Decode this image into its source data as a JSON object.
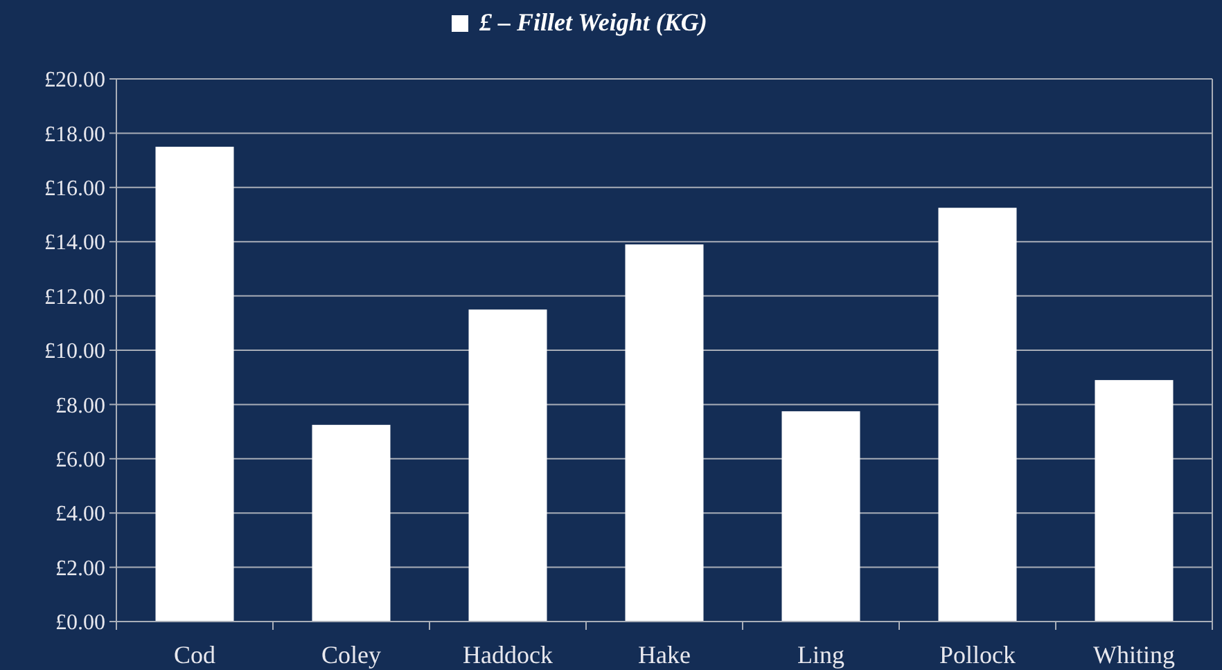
{
  "chart_data": {
    "type": "bar",
    "categories": [
      "Cod",
      "Coley",
      "Haddock",
      "Hake",
      "Ling",
      "Pollock",
      "Whiting"
    ],
    "series": [
      {
        "name": "£ – Fillet Weight (KG)",
        "color": "#ffffff",
        "values": [
          17.5,
          7.25,
          11.5,
          13.9,
          7.75,
          15.25,
          8.9
        ]
      }
    ],
    "ylim": [
      0,
      20
    ],
    "yticks": [
      {
        "value": 0,
        "label": "£0.00"
      },
      {
        "value": 2,
        "label": "£2.00"
      },
      {
        "value": 4,
        "label": "£4.00"
      },
      {
        "value": 6,
        "label": "£6.00"
      },
      {
        "value": 8,
        "label": "£8.00"
      },
      {
        "value": 10,
        "label": "£10.00"
      },
      {
        "value": 12,
        "label": "£12.00"
      },
      {
        "value": 14,
        "label": "£14.00"
      },
      {
        "value": 16,
        "label": "£16.00"
      },
      {
        "value": 18,
        "label": "£18.00"
      },
      {
        "value": 20,
        "label": "£20.00"
      }
    ],
    "grid": "y",
    "legend": "top"
  }
}
